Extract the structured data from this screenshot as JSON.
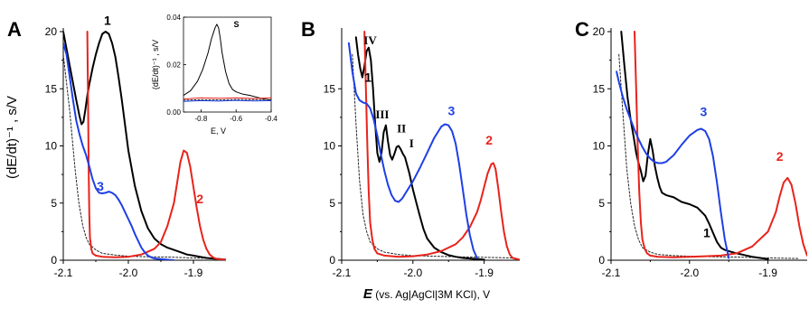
{
  "common": {
    "xlabel_symbol": "E",
    "xlabel_rest": " (vs. Ag|AgCl|3M KCl), V",
    "ylabel": "(dE/dt)⁻¹ , s/V",
    "colors": {
      "1": "#000000",
      "2": "#e8231b",
      "3": "#1f3fe6",
      "bg": "#222222"
    }
  },
  "chart_data": [
    {
      "type": "line",
      "panel_label": "A",
      "xlim": [
        -2.1,
        -1.85
      ],
      "ylim": [
        0,
        20
      ],
      "xticks": [
        -2.1,
        -2.0,
        -1.9
      ],
      "xtick_labels": [
        "-2.1",
        "-2.0",
        "-1.9"
      ],
      "yticks": [
        0,
        5,
        10,
        15,
        20
      ],
      "ytick_labels": [
        "0",
        "5",
        "10",
        "15",
        "20"
      ],
      "series": [
        {
          "key": "bg",
          "label": "",
          "style": "dotted",
          "x": [
            -2.1,
            -2.09,
            -2.082,
            -2.076,
            -2.07,
            -2.065,
            -2.06,
            -2.05,
            -2.04,
            -2.02,
            -2.0,
            -1.97,
            -1.94,
            -1.9,
            -1.86
          ],
          "y": [
            18,
            13,
            8,
            5,
            3,
            2,
            1.4,
            0.9,
            0.6,
            0.45,
            0.35,
            0.3,
            0.28,
            0.2,
            0.15
          ]
        },
        {
          "key": "1",
          "label": "1",
          "style": "solid",
          "x": [
            -2.1,
            -2.095,
            -2.09,
            -2.085,
            -2.08,
            -2.075,
            -2.072,
            -2.069,
            -2.066,
            -2.063,
            -2.06,
            -2.055,
            -2.05,
            -2.045,
            -2.04,
            -2.035,
            -2.03,
            -2.025,
            -2.02,
            -2.015,
            -2.01,
            -2.005,
            -2.0,
            -1.99,
            -1.98,
            -1.97,
            -1.96,
            -1.95,
            -1.94,
            -1.93,
            -1.92,
            -1.91,
            -1.9,
            -1.89,
            -1.88,
            -1.87,
            -1.86,
            -1.85
          ],
          "y": [
            20,
            18.5,
            17,
            15.5,
            14,
            12.6,
            11.9,
            12.1,
            13.2,
            14.4,
            15.4,
            16.8,
            18,
            19,
            19.8,
            20,
            19.8,
            19,
            17.8,
            16,
            14,
            11.8,
            9.6,
            6.5,
            4.3,
            2.8,
            1.9,
            1.4,
            1.1,
            0.9,
            0.7,
            0.5,
            0.4,
            0.3,
            0.2,
            0.15,
            0.1,
            0.05
          ]
        },
        {
          "key": "2",
          "label": "2",
          "style": "solid",
          "x": [
            -2.063,
            -2.062,
            -2.061,
            -2.06,
            -2.059,
            -2.057,
            -2.055,
            -2.05,
            -2.04,
            -2.02,
            -2.0,
            -1.98,
            -1.96,
            -1.95,
            -1.94,
            -1.93,
            -1.925,
            -1.92,
            -1.915,
            -1.91,
            -1.905,
            -1.9,
            -1.895,
            -1.89,
            -1.885,
            -1.88,
            -1.875,
            -1.87,
            -1.865,
            -1.86,
            -1.85
          ],
          "y": [
            20,
            14,
            8,
            4,
            2,
            1,
            0.6,
            0.4,
            0.3,
            0.25,
            0.3,
            0.5,
            1,
            1.6,
            3,
            5,
            6.8,
            8.6,
            9.6,
            9.4,
            8.2,
            6.4,
            4.6,
            3,
            1.8,
            1,
            0.5,
            0.25,
            0.12,
            0.08,
            0.05
          ]
        },
        {
          "key": "3",
          "label": "3",
          "style": "solid",
          "x": [
            -2.1,
            -2.095,
            -2.09,
            -2.085,
            -2.08,
            -2.075,
            -2.07,
            -2.065,
            -2.06,
            -2.055,
            -2.05,
            -2.045,
            -2.04,
            -2.035,
            -2.03,
            -2.025,
            -2.02,
            -2.015,
            -2.01,
            -2.005,
            -2.0,
            -1.995,
            -1.99,
            -1.985,
            -1.98,
            -1.975,
            -1.97,
            -1.965,
            -1.96,
            -1.95,
            -1.94,
            -1.93
          ],
          "y": [
            19,
            18,
            16,
            14,
            12.2,
            11,
            10,
            9.2,
            8.2,
            7.1,
            6.3,
            5.9,
            5.85,
            5.9,
            6,
            5.9,
            5.7,
            5.3,
            4.8,
            4.2,
            3.6,
            3,
            2.3,
            1.7,
            1.1,
            0.7,
            0.4,
            0.25,
            0.15,
            0.1,
            0.05,
            0
          ]
        }
      ],
      "curve_labels": [
        {
          "key": "1",
          "text": "1",
          "x": -2.032,
          "y": 20.6
        },
        {
          "key": "3",
          "text": "3",
          "x": -2.043,
          "y": 6.1
        },
        {
          "key": "2",
          "text": "2",
          "x": -1.89,
          "y": 5.0
        }
      ],
      "inset": {
        "panel_label": "S",
        "xlim": [
          -0.9,
          -0.4
        ],
        "ylim": [
          0,
          0.04
        ],
        "xticks": [
          -0.8,
          -0.6,
          -0.4
        ],
        "xtick_labels": [
          "-0.8",
          "-0.6",
          "-0.4"
        ],
        "yticks": [
          0.0,
          0.02,
          0.04
        ],
        "ytick_labels": [
          "0.00",
          "0.02",
          "0.04"
        ],
        "xlabel": "E, V",
        "ylabel": "(dE/dt)⁻¹ , s/V",
        "series": [
          {
            "key": "1",
            "style": "solid",
            "x": [
              -0.9,
              -0.86,
              -0.82,
              -0.79,
              -0.76,
              -0.74,
              -0.72,
              -0.71,
              -0.7,
              -0.69,
              -0.68,
              -0.66,
              -0.64,
              -0.62,
              -0.6,
              -0.56,
              -0.52,
              -0.48,
              -0.44,
              -0.4
            ],
            "y": [
              0.007,
              0.009,
              0.013,
              0.018,
              0.025,
              0.031,
              0.0355,
              0.037,
              0.0355,
              0.031,
              0.025,
              0.017,
              0.012,
              0.0095,
              0.0085,
              0.0075,
              0.007,
              0.0062,
              0.0055,
              0.005
            ]
          },
          {
            "key": "2",
            "style": "solid",
            "x": [
              -0.9,
              -0.8,
              -0.7,
              -0.6,
              -0.5,
              -0.4
            ],
            "y": [
              0.0055,
              0.006,
              0.0058,
              0.006,
              0.0057,
              0.006
            ]
          },
          {
            "key": "3",
            "style": "solid",
            "x": [
              -0.9,
              -0.8,
              -0.7,
              -0.6,
              -0.5,
              -0.4
            ],
            "y": [
              0.0045,
              0.0048,
              0.0046,
              0.0049,
              0.0047,
              0.0048
            ]
          },
          {
            "key": "bg",
            "style": "dotted",
            "x": [
              -0.9,
              -0.8,
              -0.7,
              -0.6,
              -0.5,
              -0.4
            ],
            "y": [
              0.005,
              0.0052,
              0.0051,
              0.0053,
              0.0052,
              0.0053
            ]
          }
        ]
      }
    },
    {
      "type": "line",
      "panel_label": "B",
      "xlim": [
        -2.1,
        -1.85
      ],
      "ylim": [
        0,
        20
      ],
      "xticks": [
        -2.1,
        -2.0,
        -1.9
      ],
      "xtick_labels": [
        "-2.1",
        "-2.0",
        "-1.9"
      ],
      "yticks": [
        0,
        5,
        10,
        15
      ],
      "ytick_labels": [
        "0",
        "5",
        "10",
        "15"
      ],
      "series": [
        {
          "key": "bg",
          "label": "",
          "style": "dotted",
          "x": [
            -2.085,
            -2.08,
            -2.075,
            -2.07,
            -2.065,
            -2.06,
            -2.05,
            -2.04,
            -2.02,
            -2.0,
            -1.97,
            -1.94,
            -1.9,
            -1.86
          ],
          "y": [
            18,
            12,
            7,
            4,
            2.5,
            1.6,
            1,
            0.7,
            0.5,
            0.4,
            0.35,
            0.3,
            0.25,
            0.2
          ]
        },
        {
          "key": "1",
          "label": "1",
          "style": "solid",
          "x": [
            -2.08,
            -2.077,
            -2.074,
            -2.071,
            -2.068,
            -2.065,
            -2.062,
            -2.059,
            -2.056,
            -2.053,
            -2.05,
            -2.047,
            -2.044,
            -2.041,
            -2.038,
            -2.035,
            -2.032,
            -2.029,
            -2.026,
            -2.023,
            -2.02,
            -2.017,
            -2.014,
            -2.011,
            -2.008,
            -2.005,
            -2.0,
            -1.995,
            -1.99,
            -1.985,
            -1.98,
            -1.97,
            -1.96,
            -1.95,
            -1.94,
            -1.93,
            -1.92,
            -1.91,
            -1.9
          ],
          "y": [
            19.5,
            18,
            16.8,
            16,
            17,
            18.3,
            18.6,
            17.5,
            15,
            12,
            9.4,
            8.6,
            9.4,
            11.2,
            11.8,
            10.4,
            9.2,
            8.8,
            9.3,
            9.9,
            10,
            9.7,
            9.3,
            9,
            8.3,
            7.6,
            6.2,
            5,
            3.8,
            2.7,
            1.9,
            1.1,
            0.7,
            0.45,
            0.3,
            0.2,
            0.15,
            0.1,
            0.05
          ]
        },
        {
          "key": "2",
          "label": "2",
          "style": "solid",
          "x": [
            -2.068,
            -2.066,
            -2.064,
            -2.062,
            -2.06,
            -2.057,
            -2.054,
            -2.05,
            -2.04,
            -2.02,
            -2.0,
            -1.98,
            -1.96,
            -1.94,
            -1.93,
            -1.92,
            -1.91,
            -1.905,
            -1.9,
            -1.895,
            -1.89,
            -1.887,
            -1.884,
            -1.88,
            -1.876,
            -1.872,
            -1.868,
            -1.864,
            -1.86,
            -1.85
          ],
          "y": [
            20,
            15,
            10,
            6,
            3.3,
            1.8,
            1,
            0.6,
            0.4,
            0.3,
            0.35,
            0.5,
            0.8,
            1.4,
            2,
            2.9,
            4.2,
            5.2,
            6.4,
            7.6,
            8.4,
            8.5,
            8,
            6.2,
            4.2,
            2.4,
            1.2,
            0.5,
            0.2,
            0.05
          ]
        },
        {
          "key": "3",
          "label": "3",
          "style": "solid",
          "x": [
            -2.09,
            -2.085,
            -2.08,
            -2.075,
            -2.07,
            -2.065,
            -2.06,
            -2.055,
            -2.05,
            -2.045,
            -2.04,
            -2.035,
            -2.03,
            -2.025,
            -2.02,
            -2.015,
            -2.01,
            -2.0,
            -1.99,
            -1.98,
            -1.97,
            -1.96,
            -1.955,
            -1.95,
            -1.945,
            -1.94,
            -1.935,
            -1.93,
            -1.925,
            -1.92,
            -1.915,
            -1.91
          ],
          "y": [
            19,
            16.5,
            14.6,
            14,
            13.8,
            13.7,
            13.3,
            12.3,
            10.9,
            9.3,
            7.8,
            6.6,
            5.7,
            5.2,
            5.1,
            5.4,
            5.9,
            6.9,
            8.1,
            9.4,
            10.7,
            11.7,
            11.9,
            11.8,
            11.3,
            10.2,
            8.4,
            6.2,
            4,
            2.2,
            0.9,
            0.2
          ]
        }
      ],
      "curve_labels": [
        {
          "key": "1",
          "text": "1",
          "x": -2.063,
          "y": 15.6
        },
        {
          "key": "3",
          "text": "3",
          "x": -1.946,
          "y": 12.7
        },
        {
          "key": "2",
          "text": "2",
          "x": -1.893,
          "y": 10.1
        }
      ],
      "roman_labels": [
        {
          "text": "IV",
          "x": -2.06,
          "y": 18.9
        },
        {
          "text": "III",
          "x": -2.043,
          "y": 12.4
        },
        {
          "text": "II",
          "x": -2.016,
          "y": 11.2
        },
        {
          "text": "I",
          "x": -2.002,
          "y": 9.9
        }
      ]
    },
    {
      "type": "line",
      "panel_label": "C",
      "xlim": [
        -2.1,
        -1.85
      ],
      "ylim": [
        0,
        20
      ],
      "xticks": [
        -2.1,
        -2.0,
        -1.9
      ],
      "xtick_labels": [
        "-2.1",
        "-2.0",
        "-1.9"
      ],
      "yticks": [
        0,
        5,
        10,
        15,
        20
      ],
      "ytick_labels": [
        "0",
        "5",
        "10",
        "15",
        "20"
      ],
      "series": [
        {
          "key": "bg",
          "label": "",
          "style": "dotted",
          "x": [
            -2.09,
            -2.085,
            -2.08,
            -2.075,
            -2.07,
            -2.065,
            -2.06,
            -2.05,
            -2.04,
            -2.02,
            -2.0,
            -1.97,
            -1.94,
            -1.9,
            -1.86
          ],
          "y": [
            18,
            13,
            8,
            5,
            3,
            1.8,
            1.1,
            0.7,
            0.5,
            0.4,
            0.35,
            0.3,
            0.28,
            0.2,
            0.15
          ]
        },
        {
          "key": "1",
          "label": "1",
          "style": "solid",
          "x": [
            -2.087,
            -2.083,
            -2.079,
            -2.075,
            -2.071,
            -2.068,
            -2.065,
            -2.062,
            -2.059,
            -2.056,
            -2.053,
            -2.05,
            -2.047,
            -2.044,
            -2.041,
            -2.038,
            -2.035,
            -2.03,
            -2.025,
            -2.02,
            -2.015,
            -2.01,
            -2.0,
            -1.99,
            -1.98,
            -1.975,
            -1.97,
            -1.965,
            -1.96,
            -1.955,
            -1.95,
            -1.94,
            -1.93,
            -1.92,
            -1.91,
            -1.9
          ],
          "y": [
            20,
            17,
            14.3,
            12.3,
            10.7,
            9.4,
            8.5,
            7.8,
            6.9,
            7.4,
            9.3,
            10.6,
            9.6,
            8.2,
            7.2,
            6.4,
            5.9,
            5.7,
            5.6,
            5.5,
            5.3,
            5.1,
            4.9,
            4.6,
            3.9,
            3.2,
            2.4,
            1.6,
            1.1,
            0.9,
            0.8,
            0.6,
            0.45,
            0.3,
            0.2,
            0.1
          ]
        },
        {
          "key": "2",
          "label": "2",
          "style": "solid",
          "x": [
            -2.07,
            -2.068,
            -2.066,
            -2.064,
            -2.062,
            -2.06,
            -2.057,
            -2.054,
            -2.05,
            -2.04,
            -2.02,
            -2.0,
            -1.98,
            -1.96,
            -1.94,
            -1.92,
            -1.9,
            -1.89,
            -1.885,
            -1.88,
            -1.875,
            -1.87,
            -1.865,
            -1.86,
            -1.855,
            -1.85
          ],
          "y": [
            20,
            15,
            10,
            6,
            3.3,
            1.8,
            1,
            0.6,
            0.4,
            0.3,
            0.25,
            0.3,
            0.35,
            0.4,
            0.6,
            1.2,
            2.5,
            4.2,
            5.6,
            6.8,
            7.2,
            6.6,
            5,
            3,
            1.4,
            0.4
          ]
        },
        {
          "key": "3",
          "label": "3",
          "style": "solid",
          "x": [
            -2.093,
            -2.09,
            -2.085,
            -2.08,
            -2.075,
            -2.07,
            -2.065,
            -2.06,
            -2.055,
            -2.05,
            -2.045,
            -2.04,
            -2.035,
            -2.03,
            -2.025,
            -2.02,
            -2.01,
            -2.0,
            -1.99,
            -1.985,
            -1.98,
            -1.975,
            -1.97,
            -1.965,
            -1.96,
            -1.955,
            -1.95
          ],
          "y": [
            16.5,
            15.6,
            14.3,
            13.2,
            12.3,
            11.4,
            10.6,
            9.9,
            9.3,
            8.9,
            8.6,
            8.5,
            8.5,
            8.6,
            8.9,
            9.2,
            10.1,
            10.9,
            11.4,
            11.5,
            11.3,
            10.6,
            9.1,
            6.8,
            4.2,
            1.8,
            0.2
          ]
        }
      ],
      "curve_labels": [
        {
          "key": "1",
          "text": "1",
          "x": -1.978,
          "y": 2.0
        },
        {
          "key": "3",
          "text": "3",
          "x": -1.982,
          "y": 12.6
        },
        {
          "key": "2",
          "text": "2",
          "x": -1.885,
          "y": 8.7
        }
      ]
    }
  ]
}
